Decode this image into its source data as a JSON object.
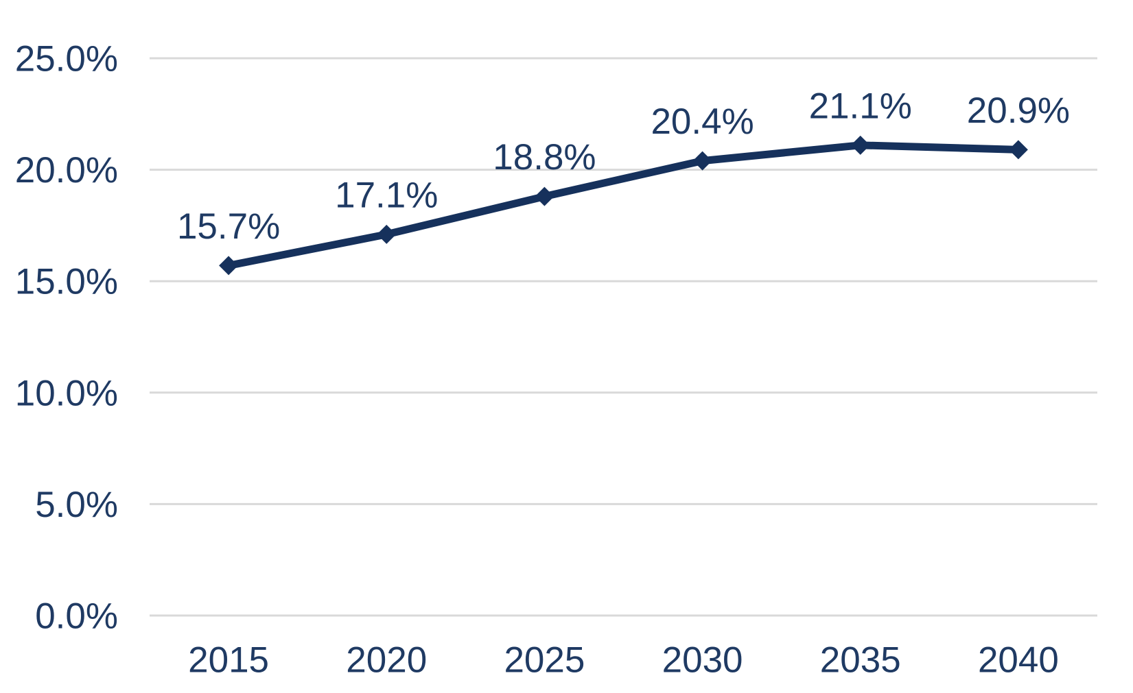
{
  "colors": {
    "background": "#FFFFFF",
    "grid": "#D9D9D9",
    "line": "#16315C",
    "marker": "#16315C",
    "text": "#1F3A63"
  },
  "chart_data": {
    "type": "line",
    "categories": [
      "2015",
      "2020",
      "2025",
      "2030",
      "2035",
      "2040"
    ],
    "values": [
      15.7,
      17.1,
      18.8,
      20.4,
      21.1,
      20.9
    ],
    "data_labels": [
      "15.7%",
      "17.1%",
      "18.8%",
      "20.4%",
      "21.1%",
      "20.9%"
    ],
    "y_ticks": [
      {
        "value": 25,
        "label": "25.0%"
      },
      {
        "value": 20,
        "label": "20.0%"
      },
      {
        "value": 15,
        "label": "15.0%"
      },
      {
        "value": 10,
        "label": "10.0%"
      },
      {
        "value": 5,
        "label": "5.0%"
      },
      {
        "value": 0,
        "label": "0.0%"
      }
    ],
    "ylim": [
      0,
      25
    ],
    "grid": true,
    "legend": "none",
    "marker_shape": "diamond",
    "title": "",
    "xlabel": "",
    "ylabel": ""
  }
}
